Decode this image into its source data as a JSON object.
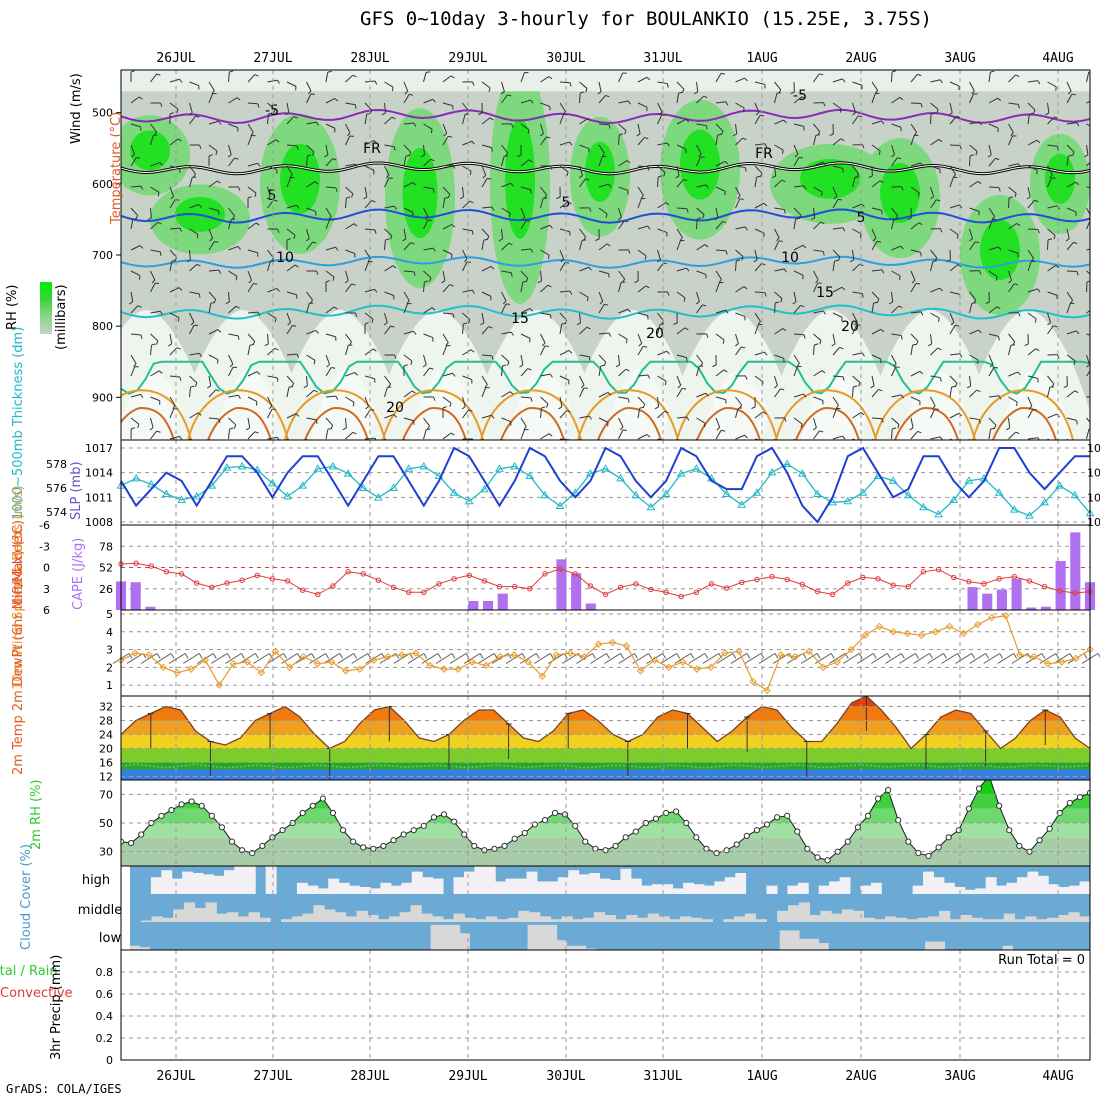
{
  "title": "GFS 0~10day 3-hourly for BOULANKIO (15.25E, 3.75S)",
  "credit": "GrADS: COLA/IGES",
  "dates": [
    "26JUL",
    "27JUL",
    "28JUL",
    "29JUL",
    "30JUL",
    "31JUL",
    "1AUG",
    "2AUG",
    "3AUG",
    "4AUG"
  ],
  "colors": {
    "slp": "#1f3fd0",
    "thickness": "#22b8c8",
    "lifted_index": "#e03a3a",
    "cape": "#b070f0",
    "wind": "#e89a2a",
    "rh_line": "#2ecc2e",
    "cloud_bg": "#6aaad4",
    "cloud_fill": "#f2f0f4",
    "temp_band_orange": "#ee7a10"
  },
  "labels": {
    "panel1_rh": "RH (%)",
    "panel1_temp": "Temperature (°C)",
    "panel1_wind": "Wind (m/s)",
    "panel1_mb": "(millibars)",
    "panel2_thk": "1000~500mb Thickness (dm)",
    "panel2_slp": "SLP (mb)",
    "panel3_li": "Lifted Index",
    "panel3_cape": "CAPE (J/kg)",
    "panel4_wind": "10m Wind Speed & Barbs (m/s)",
    "panel5_temp": "2m Temp 2m DewPt (6hr Min/Max) (°C)",
    "panel6_rh": "2m RH (%)",
    "panel7_cloud": "Cloud Cover (%)",
    "panel8_precip_total": "Total / Rain",
    "panel8_precip_conv": "Convective",
    "panel8_precip": "3hr Precip (mm)",
    "run_total": "Run Total = 0"
  },
  "chart_data": [
    {
      "type": "heatmap",
      "title": "Vertical cross-section: RH shading, temperature contours, wind barbs",
      "ylabel": "millibars",
      "yticks": [
        500,
        600,
        700,
        800,
        900
      ],
      "ylim": [
        960,
        440
      ],
      "contour_labels": [
        "-5",
        "-5",
        "FR",
        "FR",
        "5",
        "5",
        "5",
        "10",
        "10",
        "15",
        "15",
        "20",
        "20",
        "20"
      ]
    },
    {
      "type": "line",
      "ylabel": "SLP (mb) / Thickness (dm)",
      "slp_ticks": [
        1008,
        1011,
        1014,
        1017
      ],
      "thickness_ticks": [
        574,
        576,
        578
      ],
      "series": [
        {
          "name": "SLP",
          "axis": "right",
          "values": [
            1013,
            1010,
            1012,
            1014,
            1013,
            1010,
            1013,
            1016,
            1016,
            1014,
            1011,
            1014,
            1016,
            1016,
            1013,
            1010,
            1013,
            1016,
            1016,
            1013,
            1010,
            1013,
            1017,
            1016,
            1013,
            1010,
            1013,
            1017,
            1016,
            1013,
            1011,
            1013,
            1017,
            1016,
            1013,
            1011,
            1013,
            1017,
            1016,
            1013,
            1012,
            1012,
            1016,
            1017,
            1014,
            1010,
            1008,
            1011,
            1016,
            1017,
            1014,
            1011,
            1012,
            1016,
            1016,
            1013,
            1011,
            1013,
            1017,
            1017,
            1014,
            1012,
            1014,
            1016,
            1016
          ]
        },
        {
          "name": "Thickness",
          "axis": "left",
          "values": [
            576.2,
            576.8,
            576.3,
            575.5,
            575.0,
            575.3,
            576.2,
            577.7,
            577.8,
            577.5,
            576.4,
            575.3,
            576.2,
            577.6,
            577.8,
            577.2,
            576.0,
            575.2,
            576.0,
            577.6,
            577.8,
            577.0,
            575.6,
            574.9,
            575.9,
            577.6,
            577.8,
            577.0,
            575.4,
            574.5,
            575.6,
            577.2,
            577.6,
            576.8,
            575.4,
            574.4,
            575.5,
            577.2,
            577.6,
            576.8,
            575.5,
            574.6,
            575.6,
            577.3,
            578.0,
            577.2,
            575.5,
            574.8,
            574.9,
            575.6,
            577.0,
            576.6,
            575.4,
            574.4,
            573.8,
            575.0,
            576.6,
            576.8,
            575.6,
            574.2,
            573.7,
            574.8,
            576.2,
            575.4,
            573.9
          ]
        }
      ]
    },
    {
      "type": "bar",
      "ylabel": "Lifted Index / CAPE (J/kg)",
      "li_ticks": [
        -6,
        -3,
        0,
        3,
        6
      ],
      "cape_ticks": [
        26,
        52,
        78
      ],
      "series": [
        {
          "name": "Lifted Index",
          "values": [
            -0.5,
            -0.6,
            -0.2,
            0.6,
            0.9,
            2.2,
            2.8,
            2.2,
            1.8,
            1.1,
            1.6,
            1.9,
            3.2,
            3.8,
            2.6,
            0.6,
            0.9,
            1.8,
            2.8,
            3.5,
            3.5,
            2.3,
            1.6,
            1.1,
            1.9,
            2.7,
            2.7,
            3.0,
            0.9,
            0.2,
            0.9,
            2.6,
            3.8,
            2.8,
            2.3,
            3.1,
            3.5,
            4.1,
            3.5,
            2.3,
            2.9,
            2.1,
            1.7,
            1.3,
            1.7,
            2.4,
            3.4,
            3.8,
            2.2,
            1.4,
            1.6,
            2.5,
            2.7,
            0.6,
            0.3,
            1.4,
            2.0,
            2.3,
            1.6,
            1.3,
            1.9,
            2.7,
            3.3,
            3.6,
            3.4
          ]
        },
        {
          "name": "CAPE",
          "values": [
            35,
            34,
            4,
            0,
            0,
            0,
            0,
            0,
            0,
            0,
            0,
            0,
            0,
            0,
            0,
            0,
            0,
            0,
            0,
            0,
            0,
            0,
            0,
            0,
            11,
            11,
            20,
            0,
            0,
            0,
            62,
            45,
            8,
            0,
            0,
            0,
            0,
            0,
            0,
            0,
            0,
            0,
            0,
            0,
            0,
            0,
            0,
            0,
            0,
            0,
            0,
            0,
            0,
            0,
            0,
            0,
            0,
            0,
            28,
            20,
            25,
            38,
            3,
            4,
            60,
            95,
            34
          ]
        }
      ]
    },
    {
      "type": "line",
      "ylabel": "10m Wind Speed (m/s)",
      "yticks": [
        1,
        2,
        3,
        4,
        5
      ],
      "ylim": [
        0.5,
        5
      ],
      "series": [
        {
          "name": "Wind Speed",
          "values": [
            2.4,
            2.8,
            2.7,
            2.0,
            1.7,
            1.9,
            2.4,
            1.0,
            2.2,
            2.3,
            1.7,
            2.9,
            2.0,
            2.6,
            2.2,
            2.3,
            1.8,
            1.9,
            2.4,
            2.6,
            2.7,
            2.8,
            2.1,
            1.9,
            1.9,
            2.3,
            2.1,
            2.6,
            2.7,
            2.3,
            1.5,
            2.7,
            2.8,
            2.6,
            3.3,
            3.4,
            3.2,
            1.8,
            2.4,
            2.0,
            2.3,
            1.9,
            2.0,
            2.8,
            2.9,
            1.2,
            0.7,
            2.7,
            2.6,
            2.9,
            2.0,
            2.3,
            3.0,
            3.8,
            4.3,
            4.0,
            3.9,
            3.8,
            4.0,
            4.3,
            3.9,
            4.4,
            4.8,
            4.9,
            2.7,
            2.6,
            2.2,
            2.3,
            2.5,
            3.0
          ]
        }
      ]
    },
    {
      "type": "area",
      "ylabel": "2m Temp / DewPt (°C)",
      "yticks": [
        12,
        16,
        20,
        24,
        28,
        32
      ],
      "ylim": [
        11,
        35
      ],
      "series": [
        {
          "name": "2m Temp",
          "values": [
            24,
            28,
            30,
            32,
            31,
            25,
            22,
            21,
            23,
            28,
            30,
            32,
            29,
            24,
            20,
            22,
            27,
            31,
            32,
            28,
            23,
            22,
            24,
            28,
            31,
            31,
            27,
            23,
            22,
            25,
            30,
            31,
            28,
            24,
            22,
            24,
            29,
            31,
            30,
            26,
            22,
            25,
            29,
            32,
            31,
            26,
            22,
            22,
            27,
            33,
            35,
            31,
            26,
            20,
            24,
            29,
            31,
            30,
            25,
            20,
            23,
            28,
            31,
            29,
            23,
            20
          ]
        },
        {
          "name": "2m DewPt",
          "values": [
            15,
            15.5,
            15,
            14.5,
            15,
            15.5,
            15,
            14.5,
            14.8,
            15.2,
            15,
            14.5,
            14.8,
            15.3,
            15,
            14.6,
            14.8,
            15.2,
            15.1,
            14.7,
            14.9,
            15.2,
            15,
            14.6,
            14.8,
            15.3,
            15,
            14.6,
            14.9,
            15.2,
            15.1,
            14.5,
            14.8,
            15.2,
            15.1,
            14.6,
            14.8,
            15.3,
            15,
            14.5,
            14.8,
            15.3,
            15.1,
            14.7,
            14.9,
            15.3,
            15.1,
            14.6,
            14.8,
            15.2,
            15.3,
            14.8,
            14.9,
            15.3,
            15.1,
            14.7,
            14.9,
            15.2,
            15.1,
            14.6,
            14.8,
            15.3,
            15.1,
            14.8,
            14.9,
            15.2
          ]
        }
      ]
    },
    {
      "type": "area",
      "ylabel": "2m RH (%)",
      "yticks": [
        30,
        50,
        70
      ],
      "ylim": [
        20,
        80
      ],
      "series": [
        {
          "name": "2m RH",
          "values": [
            37,
            36,
            42,
            50,
            55,
            59,
            63,
            65,
            62,
            55,
            47,
            37,
            31,
            29,
            34,
            40,
            45,
            50,
            57,
            62,
            67,
            57,
            45,
            37,
            33,
            32,
            34,
            38,
            42,
            45,
            48,
            54,
            56,
            51,
            42,
            34,
            31,
            32,
            34,
            39,
            43,
            49,
            52,
            57,
            56,
            48,
            37,
            32,
            31,
            34,
            40,
            44,
            50,
            53,
            57,
            58,
            50,
            40,
            32,
            29,
            31,
            35,
            41,
            45,
            49,
            54,
            55,
            44,
            32,
            26,
            24,
            30,
            37,
            47,
            55,
            67,
            73,
            52,
            37,
            29,
            27,
            33,
            40,
            45,
            60,
            74,
            83,
            62,
            45,
            34,
            30,
            38,
            46,
            57,
            64,
            68,
            71
          ]
        }
      ]
    },
    {
      "type": "bar",
      "ylabel": "Cloud Cover (%)",
      "layers": [
        "high",
        "middle",
        "low"
      ],
      "series": [
        {
          "name": "high",
          "values": [
            0,
            0,
            60,
            85,
            55,
            80,
            75,
            70,
            65,
            85,
            100,
            100,
            0,
            100,
            0,
            0,
            40,
            30,
            20,
            55,
            40,
            30,
            25,
            20,
            40,
            30,
            40,
            80,
            60,
            55,
            0,
            60,
            80,
            100,
            100,
            45,
            55,
            55,
            80,
            45,
            45,
            60,
            85,
            70,
            75,
            55,
            50,
            90,
            55,
            30,
            35,
            35,
            20,
            40,
            35,
            30,
            45,
            60,
            75,
            0,
            0,
            30,
            0,
            30,
            40,
            0,
            30,
            45,
            60,
            0,
            30,
            40,
            0,
            0,
            0,
            30,
            80,
            60,
            40,
            25,
            15,
            20,
            60,
            30,
            40,
            60,
            80,
            65,
            35,
            25,
            30,
            45
          ]
        },
        {
          "name": "middle",
          "values": [
            0,
            5,
            20,
            15,
            45,
            70,
            50,
            70,
            30,
            35,
            20,
            35,
            15,
            0,
            10,
            20,
            30,
            60,
            45,
            35,
            20,
            40,
            25,
            10,
            20,
            35,
            60,
            30,
            20,
            10,
            30,
            15,
            10,
            20,
            10,
            15,
            40,
            35,
            20,
            10,
            20,
            10,
            15,
            35,
            25,
            10,
            25,
            15,
            30,
            20,
            10,
            20,
            15,
            10,
            0,
            10,
            20,
            30,
            10,
            0,
            40,
            60,
            70,
            25,
            40,
            30,
            45,
            40,
            15,
            10,
            20,
            15,
            10,
            15,
            20,
            40,
            10,
            25,
            15,
            10,
            10,
            30,
            10,
            20,
            10,
            15,
            25,
            35,
            20
          ]
        },
        {
          "name": "low",
          "values": [
            15,
            10,
            0,
            0,
            0,
            0,
            0,
            0,
            0,
            0,
            0,
            0,
            0,
            0,
            0,
            0,
            0,
            0,
            0,
            0,
            0,
            0,
            0,
            0,
            0,
            0,
            0,
            0,
            0,
            0,
            0,
            90,
            90,
            90,
            60,
            0,
            0,
            0,
            0,
            0,
            0,
            90,
            90,
            90,
            35,
            15,
            15,
            5,
            0,
            0,
            0,
            0,
            0,
            0,
            0,
            0,
            0,
            0,
            0,
            0,
            0,
            0,
            0,
            0,
            0,
            0,
            0,
            70,
            70,
            40,
            40,
            25,
            0,
            0,
            0,
            0,
            0,
            0,
            0,
            0,
            0,
            0,
            30,
            30,
            0,
            0,
            0,
            0,
            0,
            0,
            15,
            0,
            0,
            0,
            0,
            0,
            0,
            0,
            0
          ]
        }
      ]
    },
    {
      "type": "bar",
      "ylabel": "3hr Precip (mm)",
      "yticks": [
        0,
        0.2,
        0.4,
        0.6,
        0.8
      ],
      "ylim": [
        0,
        1
      ],
      "series": [
        {
          "name": "Total / Rain",
          "values": []
        },
        {
          "name": "Convective",
          "values": []
        }
      ]
    }
  ]
}
